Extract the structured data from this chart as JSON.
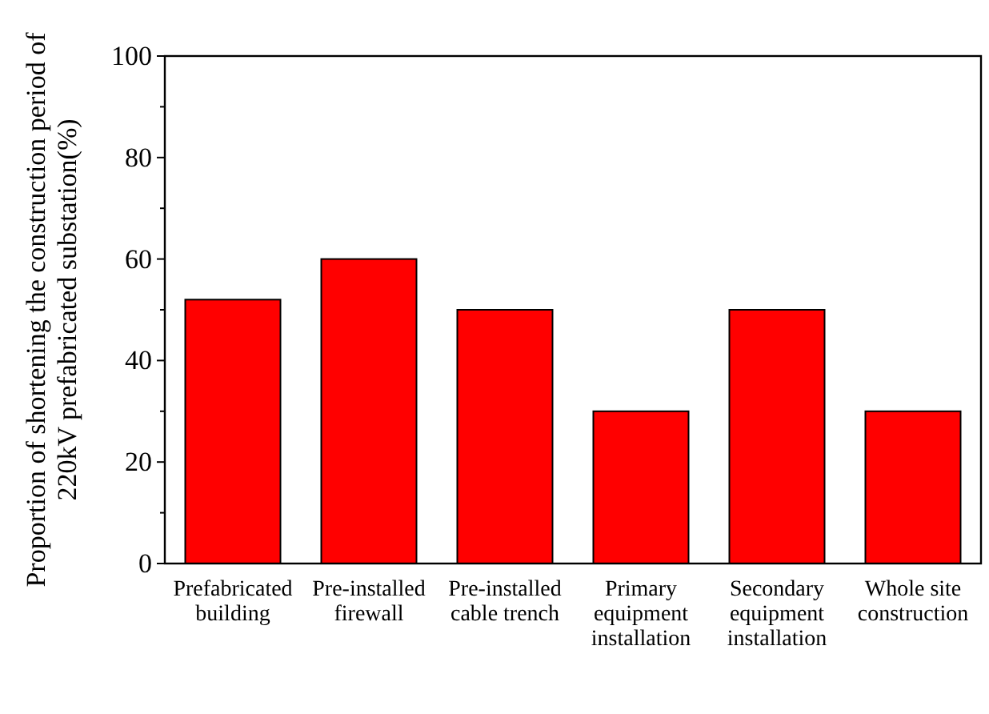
{
  "chart_data": {
    "type": "bar",
    "ylabel": "Proportion of shortening the construction period of\n220kV prefabricated substation(%)",
    "categories": [
      "Prefabricated building",
      "Pre-installed firewall",
      "Pre-installed cable trench",
      "Primary equipment installation",
      "Secondary equipment installation",
      "Whole site construction"
    ],
    "values": [
      52,
      60,
      50,
      30,
      50,
      30
    ],
    "color": "#ff0000",
    "ylim": [
      0,
      100
    ],
    "yticks": [
      0,
      {
        "value": 10,
        "label": null
      },
      20,
      {
        "value": 30,
        "label": null
      },
      40,
      {
        "value": 50,
        "label": null
      },
      60,
      {
        "value": 70,
        "label": null
      },
      80,
      {
        "value": 90,
        "label": null
      },
      100
    ],
    "grid": false
  }
}
